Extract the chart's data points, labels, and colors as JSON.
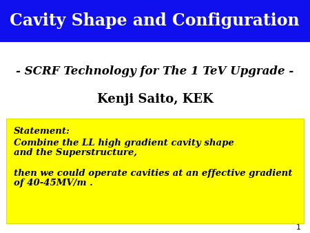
{
  "title": "Cavity Shape and Configuration",
  "title_bg_color": "#1010EE",
  "title_text_color": "#FFFFFF",
  "subtitle": "- SCRF Technology for The 1 TeV Upgrade -",
  "author": "Kenji Saito, KEK",
  "statement_bg_color": "#FFFF00",
  "statement_lines": [
    "Statement:",
    "Combine the LL high gradient cavity shape",
    "and the Superstructure,",
    "",
    "then we could operate cavities at an effective gradient",
    "of 40-45MV/m ."
  ],
  "slide_bg_color": "#FFFFFF",
  "page_number": "1",
  "title_fontsize": 17,
  "subtitle_fontsize": 12,
  "author_fontsize": 13,
  "statement_fontsize": 9.5
}
